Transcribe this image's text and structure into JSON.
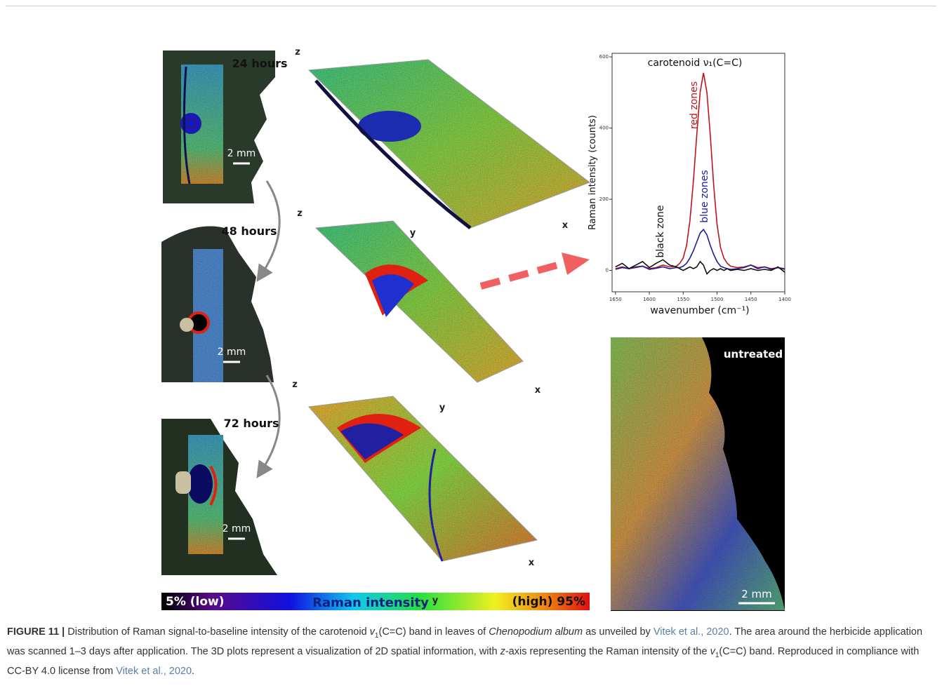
{
  "figure": {
    "leaves": [
      {
        "time": "24 hours",
        "scale": "2 mm"
      },
      {
        "time": "48 hours",
        "scale": "2 mm"
      },
      {
        "time": "72 hours",
        "scale": "2 mm"
      }
    ],
    "plots3d": [
      {
        "axes": [
          "z",
          "x"
        ]
      },
      {
        "axes": [
          "z",
          "y",
          "x"
        ]
      },
      {
        "axes": [
          "z",
          "y",
          "x",
          "y"
        ]
      }
    ],
    "untreated": {
      "label": "untreated",
      "scale": "2 mm"
    },
    "colorbar": {
      "low": "5% (low)",
      "title": "Raman intensity",
      "high": "(high) 95%"
    }
  },
  "caption": {
    "parts": [
      {
        "text": "FIGURE 11 |",
        "style": "bold"
      },
      {
        "text": " Distribution of Raman signal-to-baseline intensity of the carotenoid ",
        "style": "plain"
      },
      {
        "text": "v",
        "style": "italic"
      },
      {
        "text": "1",
        "style": "sub"
      },
      {
        "text": "(C=C) band in leaves of ",
        "style": "plain"
      },
      {
        "text": "Chenopodium album",
        "style": "italic"
      },
      {
        "text": " as unveiled by ",
        "style": "plain"
      },
      {
        "text": "Vitek et al., 2020",
        "style": "link"
      },
      {
        "text": ". The area around the herbicide application was scanned 1–3 days after application. The 3D plots represent a visualization of 2D spatial information, with ",
        "style": "plain"
      },
      {
        "text": "z",
        "style": "italic"
      },
      {
        "text": "-axis representing the Raman intensity of the ",
        "style": "plain"
      },
      {
        "text": "v",
        "style": "italic"
      },
      {
        "text": "1",
        "style": "sub"
      },
      {
        "text": "(C=C) band. Reproduced in compliance with CC-BY 4.0 license from ",
        "style": "plain"
      },
      {
        "text": "Vitek et al., 2020",
        "style": "link"
      },
      {
        "text": ".",
        "style": "plain"
      }
    ]
  },
  "chart_data": {
    "type": "line",
    "title": "carotenoid ν₁(C=C)",
    "x_label": "wavenumber (cm⁻¹)",
    "y_label": "Raman intensity (counts)",
    "x": [
      1650,
      1640,
      1630,
      1620,
      1610,
      1600,
      1590,
      1580,
      1570,
      1560,
      1555,
      1550,
      1545,
      1540,
      1535,
      1530,
      1525,
      1520,
      1515,
      1510,
      1505,
      1500,
      1495,
      1490,
      1485,
      1480,
      1470,
      1460,
      1450,
      1440,
      1430,
      1420,
      1410,
      1400
    ],
    "series": [
      {
        "name": "red zones",
        "color": "#c0141c",
        "values": [
          5,
          10,
          5,
          8,
          12,
          5,
          8,
          15,
          10,
          12,
          20,
          35,
          70,
          140,
          250,
          380,
          500,
          555,
          500,
          380,
          240,
          130,
          65,
          35,
          20,
          12,
          8,
          10,
          15,
          8,
          10,
          5,
          8,
          5
        ]
      },
      {
        "name": "blue zones",
        "color": "#1c1c9c",
        "values": [
          3,
          8,
          5,
          10,
          12,
          3,
          6,
          10,
          5,
          8,
          8,
          12,
          20,
          35,
          55,
          80,
          105,
          115,
          100,
          70,
          45,
          25,
          12,
          8,
          5,
          3,
          5,
          8,
          15,
          5,
          10,
          3,
          8,
          3
        ]
      },
      {
        "name": "black zone",
        "color": "#111111",
        "values": [
          10,
          20,
          5,
          15,
          25,
          8,
          20,
          30,
          15,
          10,
          5,
          0,
          5,
          10,
          5,
          10,
          25,
          15,
          -10,
          0,
          5,
          0,
          5,
          0,
          5,
          0,
          3,
          0,
          5,
          0,
          3,
          0,
          10,
          -5
        ]
      }
    ],
    "xlim": [
      1655,
      1400
    ],
    "ylim": [
      -60,
      610
    ],
    "xticks": [
      1650,
      1600,
      1550,
      1500,
      1450,
      1400
    ],
    "yticks": [
      0,
      200,
      400,
      600
    ]
  }
}
